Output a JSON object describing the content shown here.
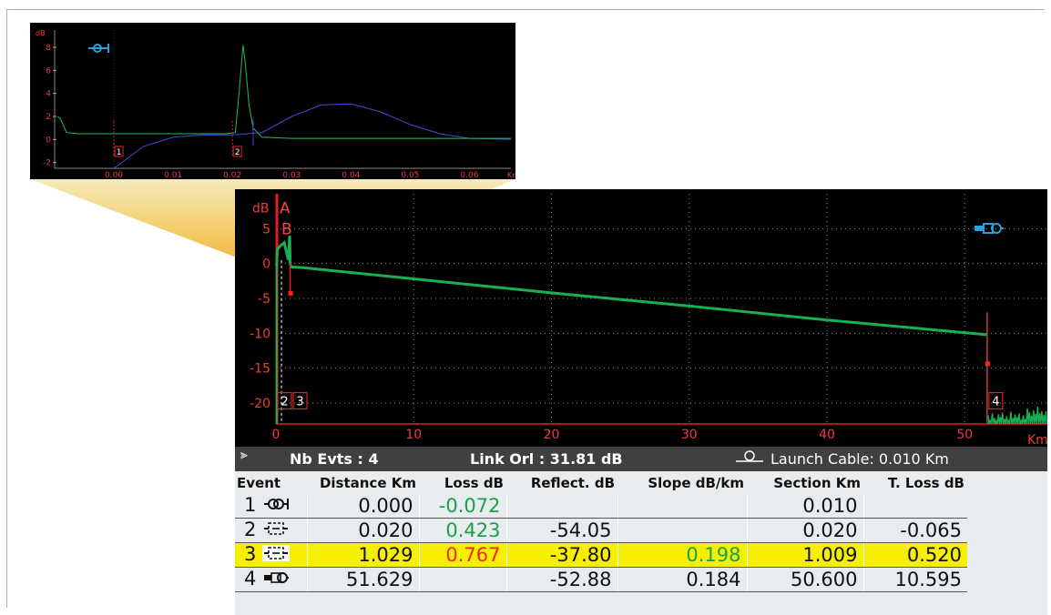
{
  "inset_chart": {
    "y_unit": "dB",
    "x_unit": "Km",
    "y_ticks": [
      "8",
      "6",
      "4",
      "2",
      "0",
      "-2"
    ],
    "x_ticks": [
      "0.00",
      "0.01",
      "0.02",
      "0.03",
      "0.04",
      "0.05",
      "0.06"
    ],
    "markers": [
      "1",
      "2"
    ]
  },
  "main_chart": {
    "y_unit": "dB",
    "x_unit": "Km",
    "y_ticks": [
      "5",
      "0",
      "-5",
      "-10",
      "-15",
      "-20"
    ],
    "x_ticks": [
      "0",
      "10",
      "20",
      "30",
      "40",
      "50"
    ],
    "cursors": [
      "A",
      "B"
    ],
    "markers": [
      "2",
      "3",
      "4"
    ]
  },
  "chart_data": [
    {
      "type": "line",
      "xlabel": "Km",
      "ylabel": "dB",
      "xlim": [
        -0.01,
        0.067
      ],
      "ylim": [
        -2.5,
        9.5
      ],
      "series": [
        {
          "color": "#18c060",
          "x": [
            -0.0095,
            -0.009,
            -0.008,
            -0.006,
            -0.003,
            0.0,
            0.005,
            0.01,
            0.015,
            0.019,
            0.0205,
            0.0212,
            0.0218,
            0.0222,
            0.0228,
            0.0235,
            0.025,
            0.03,
            0.04,
            0.05,
            0.067
          ],
          "y": [
            2.0,
            1.8,
            0.6,
            0.5,
            0.5,
            0.5,
            0.5,
            0.5,
            0.5,
            0.5,
            0.6,
            4.5,
            8.2,
            6.5,
            3.0,
            1.0,
            0.2,
            0.1,
            0.1,
            0.1,
            0.1
          ]
        },
        {
          "color": "#4a48d8",
          "x": [
            0.0,
            0.005,
            0.01,
            0.015,
            0.02,
            0.025,
            0.03,
            0.035,
            0.04,
            0.045,
            0.05,
            0.055,
            0.06,
            0.067
          ],
          "y": [
            -2.5,
            -0.6,
            0.2,
            0.4,
            0.4,
            0.6,
            2.0,
            3.0,
            3.1,
            2.4,
            1.3,
            0.5,
            0.1,
            0.0
          ]
        }
      ]
    },
    {
      "type": "line",
      "xlabel": "Km",
      "ylabel": "dB",
      "xlim": [
        0,
        56
      ],
      "ylim": [
        -23,
        10
      ],
      "series": [
        {
          "color": "#18b054",
          "x": [
            0.0,
            0.05,
            0.1,
            0.3,
            0.6,
            0.9,
            1.0,
            1.03,
            1.1,
            2,
            10,
            20,
            30,
            40,
            51.6
          ],
          "y": [
            0.0,
            -0.2,
            2.0,
            2.5,
            3.0,
            0.5,
            4.0,
            0.0,
            -0.5,
            -0.6,
            -2.2,
            -4.2,
            -6.1,
            -8.1,
            -10.2
          ]
        }
      ]
    }
  ],
  "infobar": {
    "nb_evts": "Nb Evts : 4",
    "link_orl": "Link Orl :  31.81 dB",
    "launch_cable": "Launch Cable:  0.010 Km"
  },
  "events_table": {
    "headers": [
      "Event",
      "Distance  Km",
      "Loss dB",
      "Reflect. dB",
      "Slope   dB/km",
      "Section Km",
      "T. Loss dB"
    ],
    "rows": [
      {
        "event": "1",
        "icon": "launch-connector-icon",
        "distance": "0.000",
        "loss": "-0.072",
        "reflect": "",
        "slope": "",
        "section": "0.010",
        "tloss": ""
      },
      {
        "event": "2",
        "icon": "splice-connector-icon",
        "distance": "0.020",
        "loss": "0.423",
        "reflect": "-54.05",
        "slope": "",
        "section": "0.020",
        "tloss": "-0.065"
      },
      {
        "event": "3",
        "icon": "splice-connector-icon",
        "distance": "1.029",
        "loss": "0.767",
        "reflect": "-37.80",
        "slope": "0.198",
        "section": "1.009",
        "tloss": "0.520"
      },
      {
        "event": "4",
        "icon": "fiber-end-icon",
        "distance": "51.629",
        "loss": "",
        "reflect": "-52.88",
        "slope": "0.184",
        "section": "50.600",
        "tloss": "10.595"
      }
    ]
  },
  "colors": {
    "trace": "#18b054",
    "reference": "#4a48d8",
    "grid": "#8a8a8a",
    "axis_text": "#f03a3a",
    "highlight_row": "#f6ef00",
    "loss_ok": "#1aa04a",
    "loss_bad": "#f02a1a"
  }
}
